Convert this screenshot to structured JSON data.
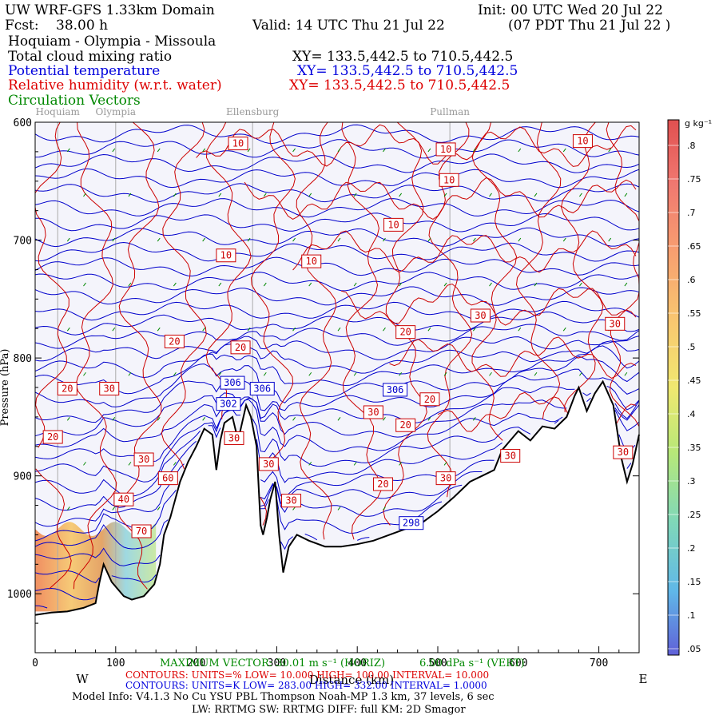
{
  "header": {
    "model": "UW WRF-GFS 1.33km Domain",
    "init": "Init: 00 UTC Wed 20 Jul 22",
    "fcst_label": "Fcst:",
    "fcst_value": "38.00 h",
    "valid": "Valid: 14 UTC Thu 21 Jul 22",
    "valid_local": "(07 PDT Thu 21 Jul 22  )",
    "route": "Hoquiam - Olympia - Missoula",
    "fields": [
      {
        "name": "Total cloud mixing ratio",
        "xy": "XY= 133.5,442.5 to 710.5,442.5"
      },
      {
        "name": "Potential temperature",
        "xy": "XY= 133.5,442.5 to 710.5,442.5"
      },
      {
        "name": "Relative humidity (w.r.t. water)",
        "xy": "XY= 133.5,442.5 to 710.5,442.5"
      },
      {
        "name": "Circulation Vectors",
        "xy": ""
      }
    ]
  },
  "chart_data": {
    "type": "cross-section",
    "xlabel": "Distance (km)",
    "ylabel": "Pressure (hPa)",
    "xlim": [
      0,
      750
    ],
    "ylim": [
      1050,
      600
    ],
    "x_ticks": [
      0,
      100,
      200,
      300,
      400,
      500,
      600,
      700
    ],
    "x_tick_labels": [
      "0",
      "100",
      "200",
      "300",
      "400",
      "500",
      "600",
      "700"
    ],
    "y_ticks": [
      600,
      700,
      800,
      900,
      1000
    ],
    "y_tick_labels": [
      "600",
      "700",
      "800",
      "900",
      "1000"
    ],
    "locations": [
      {
        "name": "Hoquiam",
        "x": 28
      },
      {
        "name": "Olympia",
        "x": 100
      },
      {
        "name": "Ellensburg",
        "x": 270
      },
      {
        "name": "Pullman",
        "x": 515
      }
    ],
    "direction_left": "W",
    "direction_right": "E",
    "terrain": [
      [
        0,
        1018
      ],
      [
        20,
        1016
      ],
      [
        40,
        1015
      ],
      [
        60,
        1012
      ],
      [
        75,
        1008
      ],
      [
        80,
        990
      ],
      [
        85,
        975
      ],
      [
        95,
        990
      ],
      [
        110,
        1002
      ],
      [
        120,
        1005
      ],
      [
        135,
        1002
      ],
      [
        148,
        992
      ],
      [
        155,
        975
      ],
      [
        160,
        950
      ],
      [
        168,
        935
      ],
      [
        180,
        905
      ],
      [
        190,
        888
      ],
      [
        200,
        875
      ],
      [
        210,
        860
      ],
      [
        220,
        865
      ],
      [
        225,
        895
      ],
      [
        230,
        870
      ],
      [
        235,
        855
      ],
      [
        245,
        850
      ],
      [
        252,
        870
      ],
      [
        262,
        840
      ],
      [
        268,
        850
      ],
      [
        275,
        875
      ],
      [
        280,
        942
      ],
      [
        283,
        950
      ],
      [
        288,
        935
      ],
      [
        292,
        920
      ],
      [
        298,
        905
      ],
      [
        303,
        950
      ],
      [
        308,
        982
      ],
      [
        315,
        960
      ],
      [
        325,
        950
      ],
      [
        340,
        955
      ],
      [
        360,
        960
      ],
      [
        380,
        960
      ],
      [
        400,
        958
      ],
      [
        420,
        955
      ],
      [
        440,
        950
      ],
      [
        460,
        945
      ],
      [
        480,
        940
      ],
      [
        500,
        930
      ],
      [
        520,
        918
      ],
      [
        540,
        905
      ],
      [
        555,
        900
      ],
      [
        570,
        895
      ],
      [
        580,
        878
      ],
      [
        590,
        870
      ],
      [
        600,
        862
      ],
      [
        615,
        870
      ],
      [
        630,
        858
      ],
      [
        645,
        860
      ],
      [
        660,
        850
      ],
      [
        670,
        832
      ],
      [
        675,
        825
      ],
      [
        685,
        845
      ],
      [
        695,
        830
      ],
      [
        705,
        820
      ],
      [
        718,
        840
      ],
      [
        728,
        885
      ],
      [
        735,
        905
      ],
      [
        742,
        890
      ],
      [
        750,
        865
      ]
    ],
    "theta_lines_min": 283,
    "theta_lines_max": 332,
    "theta_interval": 1,
    "theta_labels": [
      {
        "text": "306",
        "x": 245,
        "p": 821
      },
      {
        "text": "306",
        "x": 282,
        "p": 826
      },
      {
        "text": "306",
        "x": 447,
        "p": 827
      },
      {
        "text": "302",
        "x": 240,
        "p": 839
      },
      {
        "text": "298",
        "x": 467,
        "p": 940
      }
    ],
    "rh_labels": [
      {
        "text": "10",
        "x": 252,
        "p": 618
      },
      {
        "text": "10",
        "x": 510,
        "p": 623
      },
      {
        "text": "10",
        "x": 680,
        "p": 616
      },
      {
        "text": "10",
        "x": 514,
        "p": 649
      },
      {
        "text": "10",
        "x": 445,
        "p": 687
      },
      {
        "text": "10",
        "x": 237,
        "p": 713
      },
      {
        "text": "10",
        "x": 343,
        "p": 718
      },
      {
        "text": "20",
        "x": 173,
        "p": 786
      },
      {
        "text": "20",
        "x": 255,
        "p": 791
      },
      {
        "text": "20",
        "x": 460,
        "p": 778
      },
      {
        "text": "30",
        "x": 553,
        "p": 764
      },
      {
        "text": "30",
        "x": 720,
        "p": 771
      },
      {
        "text": "20",
        "x": 40,
        "p": 826
      },
      {
        "text": "30",
        "x": 92,
        "p": 826
      },
      {
        "text": "30",
        "x": 420,
        "p": 846
      },
      {
        "text": "20",
        "x": 490,
        "p": 835
      },
      {
        "text": "20",
        "x": 460,
        "p": 857
      },
      {
        "text": "20",
        "x": 22,
        "p": 867
      },
      {
        "text": "30",
        "x": 247,
        "p": 868
      },
      {
        "text": "30",
        "x": 135,
        "p": 886
      },
      {
        "text": "30",
        "x": 290,
        "p": 890
      },
      {
        "text": "30",
        "x": 590,
        "p": 883
      },
      {
        "text": "30",
        "x": 730,
        "p": 880
      },
      {
        "text": "60",
        "x": 165,
        "p": 902
      },
      {
        "text": "30",
        "x": 510,
        "p": 902
      },
      {
        "text": "20",
        "x": 432,
        "p": 907
      },
      {
        "text": "40",
        "x": 110,
        "p": 920
      },
      {
        "text": "30",
        "x": 318,
        "p": 921
      },
      {
        "text": "70",
        "x": 132,
        "p": 947
      }
    ],
    "location_line_color": "#aaaaaa",
    "theta_color": "#0000cc",
    "rh_color": "#cc0000",
    "vector_color": "#008800",
    "cloud_region": {
      "x_start": 0,
      "x_end": 150,
      "p_top": 945,
      "p_bottom": 1000
    },
    "colorbar": {
      "unit": "g kg⁻¹",
      "labels": [
        ".8",
        ".75",
        ".7",
        ".65",
        ".6",
        ".55",
        ".5",
        ".45",
        ".4",
        ".35",
        ".3",
        ".25",
        ".2",
        ".15",
        ".1",
        ".05"
      ]
    }
  },
  "footer": {
    "max_vector": "MAXIMUM VECTOR: 30.01 m s⁻¹ (HORIZ)",
    "max_vertical": "6.00 dPa s⁻¹ (VERT)",
    "rh_contours": "CONTOURS:  UNITS=%  LOW=   10.000       HIGH=   100.00      INTERVAL=   10.000",
    "theta_contours": "CONTOURS:  UNITS=K  LOW=   283.00       HIGH=   332.00      INTERVAL=   1.0000",
    "model_info": "Model Info: V4.1.3    No Cu    YSU PBL  Thompson     Noah-MP    1.3 km,   37 levels,    6 sec",
    "physics": "LW: RRTMG SW: RRTMG    DIFF: full    KM: 2D Smagor"
  },
  "colors": {
    "plot_bg": "#f4f4fb",
    "terrain": "#000000",
    "blue_text": "#0000dd",
    "red_text": "#dd0000",
    "green_text": "#008800"
  }
}
